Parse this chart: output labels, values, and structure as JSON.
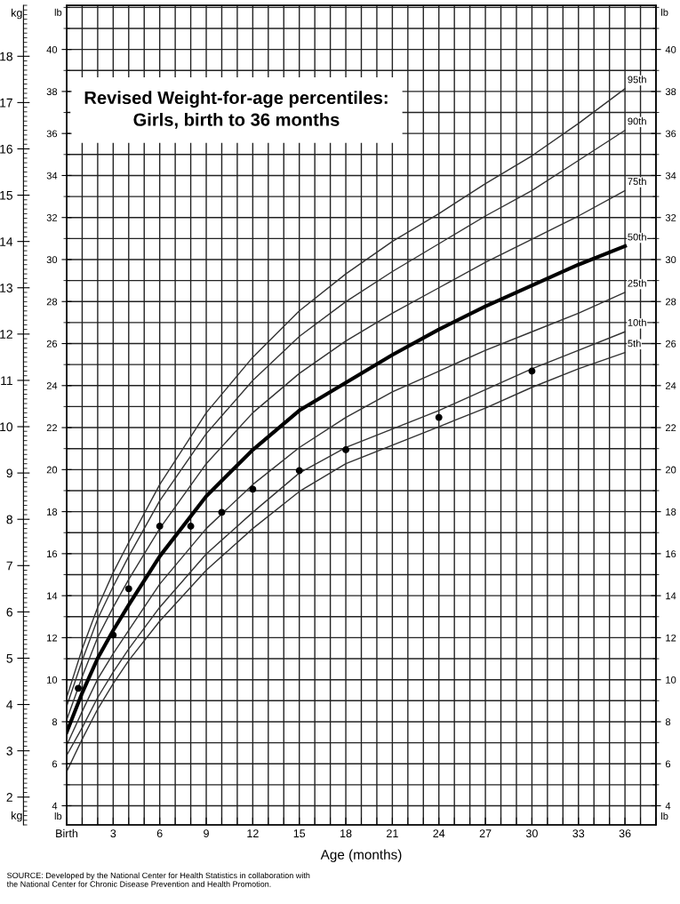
{
  "chart_data": {
    "type": "line",
    "title": "Revised Weight-for-age percentiles:\nGirls, birth to 36 months",
    "xlabel": "Age (months)",
    "ylabel": "kg",
    "y2label": "lb",
    "annotations": [
      "SOURCE: Developed by the National Center for Health Statistics in collaboration with\nthe National Center for Chronic Disease Prevention and Health Promotion."
    ],
    "x": [
      0,
      1,
      2,
      3,
      4,
      6,
      9,
      12,
      15,
      18,
      21,
      24,
      27,
      30,
      33,
      36
    ],
    "series": [
      {
        "name": "95th",
        "color": "#333333",
        "values": [
          4.15,
          5.2,
          6.1,
          6.85,
          7.5,
          8.75,
          10.3,
          11.5,
          12.5,
          13.3,
          14.0,
          14.6,
          15.25,
          15.85,
          16.55,
          17.3
        ]
      },
      {
        "name": "90th",
        "color": "#333333",
        "values": [
          3.96,
          4.95,
          5.85,
          6.55,
          7.2,
          8.4,
          9.85,
          11.0,
          11.95,
          12.7,
          13.35,
          13.95,
          14.55,
          15.1,
          15.75,
          16.4
        ]
      },
      {
        "name": "75th",
        "color": "#333333",
        "values": [
          3.67,
          4.6,
          5.45,
          6.1,
          6.7,
          7.8,
          9.2,
          10.3,
          11.15,
          11.85,
          12.45,
          13.0,
          13.55,
          14.05,
          14.55,
          15.1
        ]
      },
      {
        "name": "50th",
        "color": "#000000",
        "values": [
          3.4,
          4.25,
          5.0,
          5.6,
          6.15,
          7.2,
          8.5,
          9.5,
          10.35,
          10.95,
          11.55,
          12.1,
          12.6,
          13.05,
          13.5,
          13.9
        ]
      },
      {
        "name": "25th",
        "color": "#333333",
        "values": [
          3.12,
          3.85,
          4.55,
          5.1,
          5.6,
          6.6,
          7.8,
          8.75,
          9.55,
          10.2,
          10.75,
          11.2,
          11.65,
          12.05,
          12.45,
          12.9
        ]
      },
      {
        "name": "10th",
        "color": "#333333",
        "values": [
          2.9,
          3.5,
          4.15,
          4.7,
          5.2,
          6.1,
          7.25,
          8.15,
          9.0,
          9.55,
          9.95,
          10.35,
          10.8,
          11.25,
          11.65,
          12.05
        ]
      },
      {
        "name": "5th",
        "color": "#333333",
        "values": [
          2.55,
          3.25,
          3.9,
          4.45,
          4.95,
          5.8,
          6.9,
          7.8,
          8.6,
          9.2,
          9.6,
          10.0,
          10.4,
          10.85,
          11.25,
          11.6
        ]
      },
      {
        "type": "scatter",
        "color": "#000000",
        "marker": "circle",
        "x": [
          0.75,
          3,
          4,
          6,
          8,
          10,
          12,
          15,
          18,
          24,
          30
        ],
        "values": [
          4.35,
          5.5,
          6.5,
          7.85,
          7.85,
          8.15,
          8.65,
          9.05,
          9.5,
          10.2,
          11.2
        ]
      }
    ],
    "xlim": [
      0,
      38
    ],
    "xticks": [
      {
        "value": 0,
        "label": "Birth"
      },
      3,
      6,
      9,
      12,
      15,
      18,
      21,
      24,
      27,
      30,
      33,
      36
    ],
    "ylim": [
      1.4,
      19.1
    ],
    "yticks": [
      2,
      3,
      4,
      5,
      6,
      7,
      8,
      9,
      10,
      11,
      12,
      13,
      14,
      15,
      16,
      17,
      18
    ],
    "y2lim": [
      3.09,
      42.1
    ],
    "y2ticks": [
      4,
      6,
      8,
      10,
      12,
      14,
      16,
      18,
      20,
      22,
      24,
      26,
      28,
      30,
      32,
      34,
      36,
      38,
      40
    ],
    "y3label": "lb",
    "y3lim": [
      3.09,
      42.1
    ],
    "y3ticks": [
      4,
      6,
      8,
      10,
      12,
      14,
      16,
      18,
      20,
      22,
      24,
      26,
      28,
      30,
      32,
      34,
      36,
      38,
      40
    ],
    "grid": true,
    "marker": "none",
    "line_style": "solid"
  }
}
